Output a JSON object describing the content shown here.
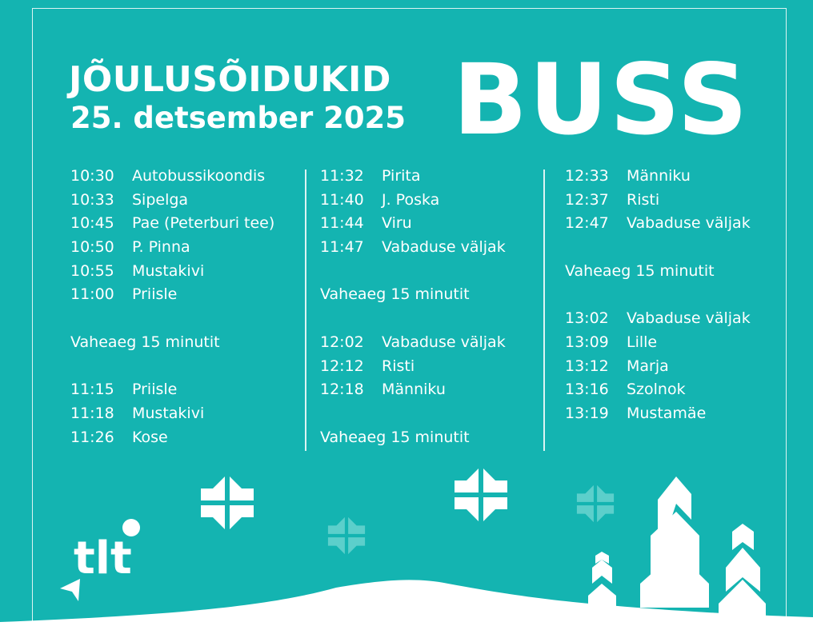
{
  "header": {
    "title": "JÕULUSÕIDUKID",
    "date": "25. detsember 2025",
    "vehicle": "BUSS"
  },
  "colors": {
    "background": "#14b4b1",
    "text": "#ffffff",
    "faded_snowflake": "#5ccfcb"
  },
  "schedule": {
    "columns": [
      {
        "rows": [
          {
            "time": "10:30",
            "stop": "Autobussikoondis"
          },
          {
            "time": "10:33",
            "stop": "Sipelga"
          },
          {
            "time": "10:45",
            "stop": "Pae (Peterburi tee)"
          },
          {
            "time": "10:50",
            "stop": "P. Pinna"
          },
          {
            "time": "10:55",
            "stop": "Mustakivi"
          },
          {
            "time": "11:00",
            "stop": "Priisle"
          },
          {},
          {
            "note": "Vaheaeg 15 minutit"
          },
          {},
          {
            "time": "11:15",
            "stop": "Priisle"
          },
          {
            "time": "11:18",
            "stop": "Mustakivi"
          },
          {
            "time": "11:26",
            "stop": "Kose"
          }
        ]
      },
      {
        "rows": [
          {
            "time": "11:32",
            "stop": "Pirita"
          },
          {
            "time": "11:40",
            "stop": "J. Poska"
          },
          {
            "time": "11:44",
            "stop": "Viru"
          },
          {
            "time": "11:47",
            "stop": "Vabaduse väljak"
          },
          {},
          {
            "note": "Vaheaeg 15 minutit"
          },
          {},
          {
            "time": "12:02",
            "stop": "Vabaduse väljak"
          },
          {
            "time": "12:12",
            "stop": "Risti"
          },
          {
            "time": "12:18",
            "stop": "Männiku"
          },
          {},
          {
            "note": "Vaheaeg 15 minutit"
          }
        ]
      },
      {
        "rows": [
          {
            "time": "12:33",
            "stop": "Männiku"
          },
          {
            "time": "12:37",
            "stop": "Risti"
          },
          {
            "time": "12:47",
            "stop": "Vabaduse väljak"
          },
          {},
          {
            "note": "Vaheaeg 15 minutit"
          },
          {},
          {
            "time": "13:02",
            "stop": "Vabaduse väljak"
          },
          {
            "time": "13:09",
            "stop": "Lille"
          },
          {
            "time": "13:12",
            "stop": "Marja"
          },
          {
            "time": "13:16",
            "stop": "Szolnok"
          },
          {
            "time": "13:19",
            "stop": "Mustamäe"
          }
        ]
      }
    ]
  },
  "logo": {
    "text": "tlt"
  }
}
